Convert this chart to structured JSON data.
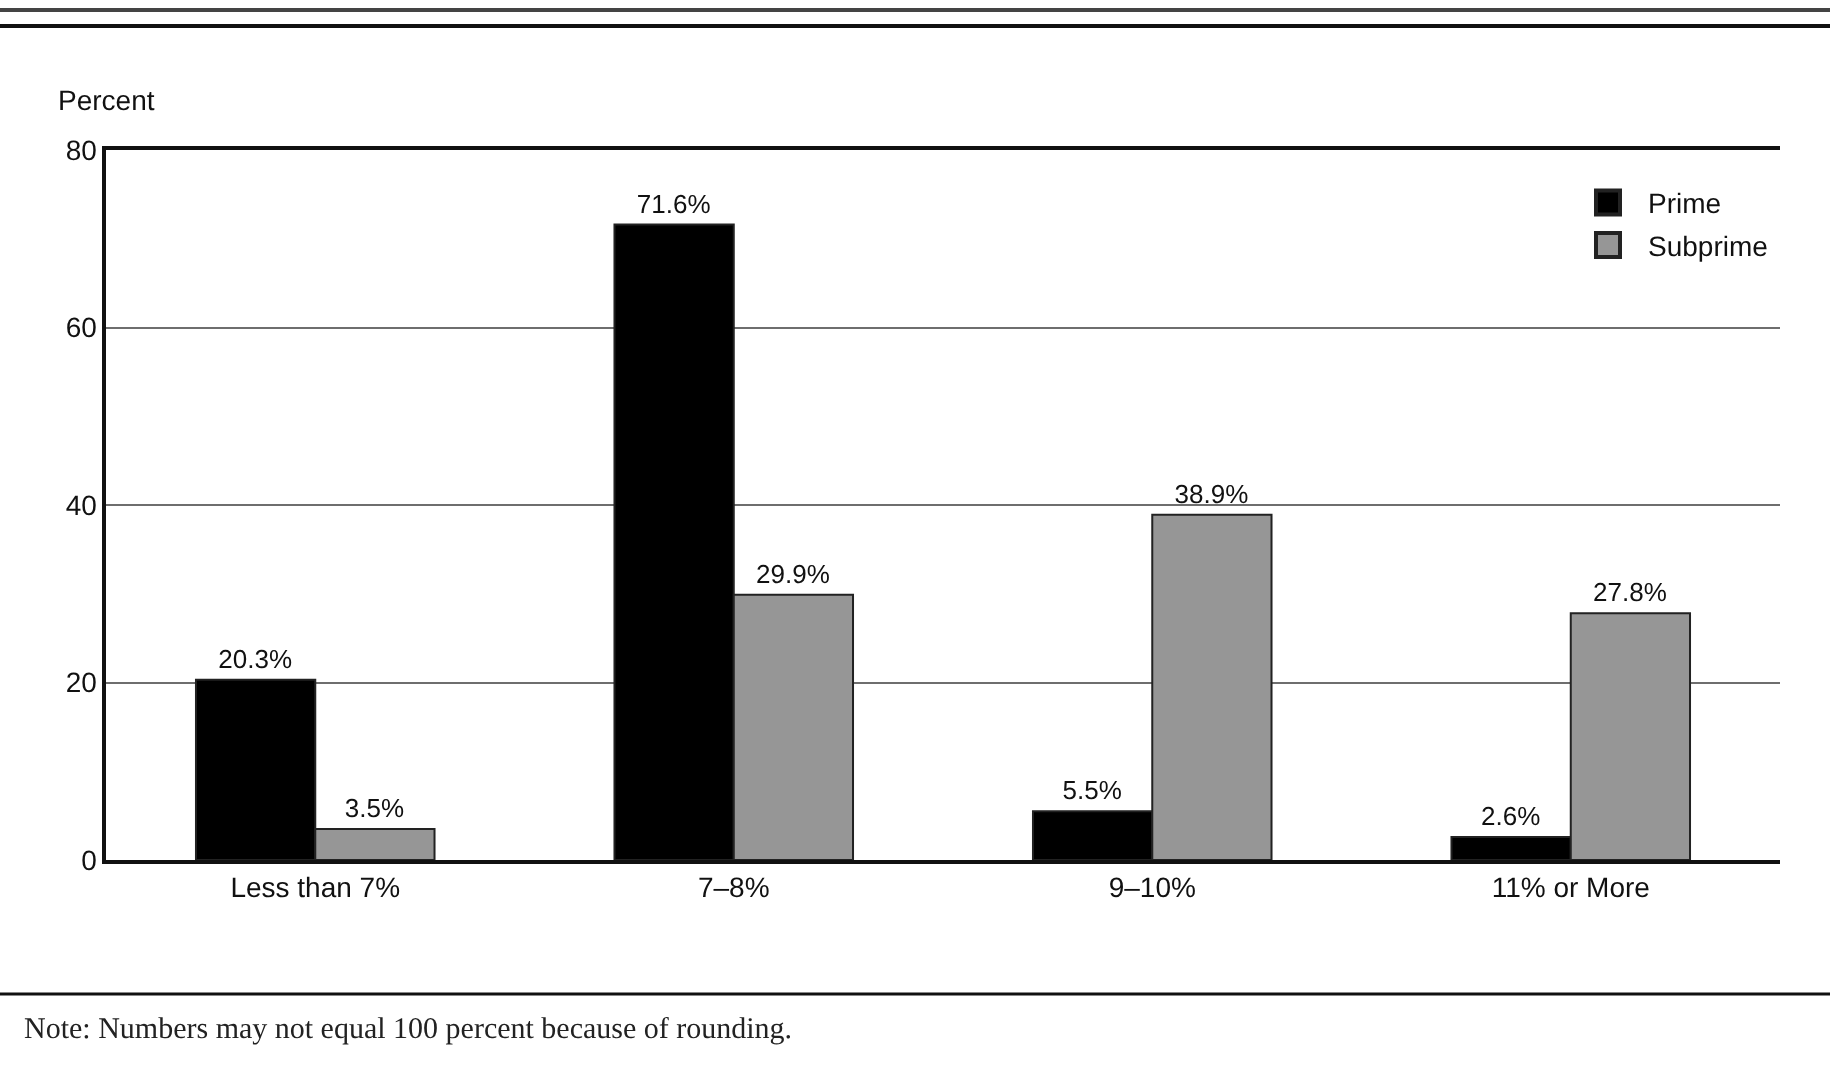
{
  "chart_data": {
    "type": "bar",
    "ylabel": "Percent",
    "categories": [
      "Less than 7%",
      "7–8%",
      "9–10%",
      "11% or More"
    ],
    "series": [
      {
        "name": "Prime",
        "color": "#000000",
        "values": [
          20.3,
          71.6,
          5.5,
          2.6
        ],
        "value_labels": [
          "20.3%",
          "71.6%",
          "5.5%",
          "2.6%"
        ]
      },
      {
        "name": "Subprime",
        "color": "#969696",
        "values": [
          3.5,
          29.9,
          38.9,
          27.8
        ],
        "value_labels": [
          "3.5%",
          "29.9%",
          "38.9%",
          "27.8%"
        ]
      }
    ],
    "ylim": [
      0,
      80
    ],
    "yticks": [
      0,
      20,
      40,
      60,
      80
    ],
    "grid": "y",
    "legend": "top right",
    "annotations": [
      "Note: Numbers may not equal 100 percent because of rounding."
    ]
  }
}
